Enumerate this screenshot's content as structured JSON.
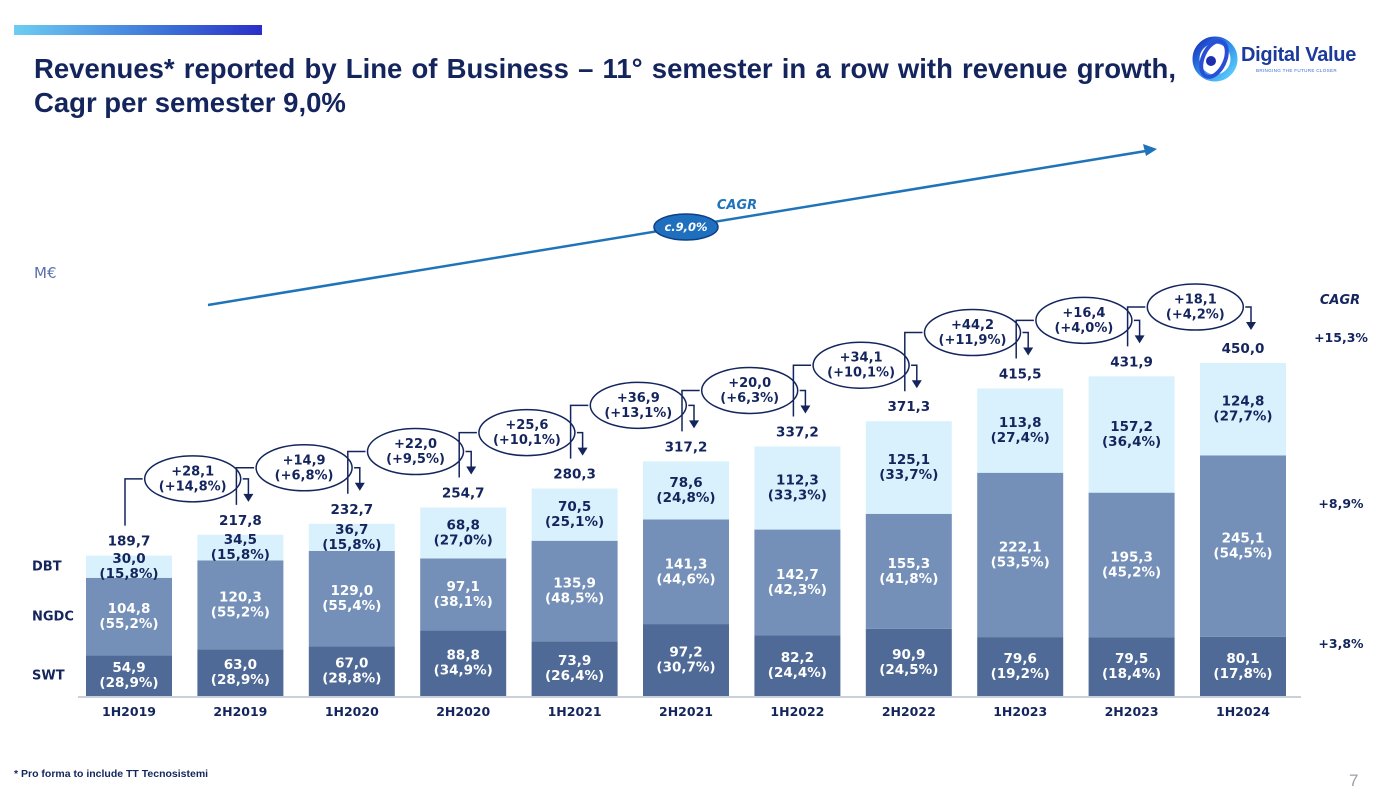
{
  "header": {
    "title": "Revenues* reported by Line of Business – 11° semester in a row with revenue growth, Cagr per semester 9,0%"
  },
  "logo": {
    "name": "Digital Value",
    "tagline": "BRINGING THE FUTURE CLOSER"
  },
  "footer": {
    "footnote": "* Pro forma to include TT Tecnosistemi",
    "page_number": "7"
  },
  "colors": {
    "swt": "#4f6a96",
    "ngdc": "#7590b8",
    "dbt": "#d8f1fc",
    "navy": "#14255e",
    "arrow": "#1f74b9",
    "bubble": "#1f6fbf"
  },
  "chart_data": {
    "type": "bar",
    "stacked": true,
    "unit_label": "M€",
    "categories": [
      "1H2019",
      "2H2019",
      "1H2020",
      "2H2020",
      "1H2021",
      "2H2021",
      "1H2022",
      "2H2022",
      "1H2023",
      "2H2023",
      "1H2024"
    ],
    "series": [
      {
        "name": "SWT",
        "values": [
          54.9,
          63.0,
          67.0,
          88.8,
          73.9,
          97.2,
          82.2,
          90.9,
          79.6,
          79.5,
          80.1
        ],
        "labels": [
          "54,9\n(28,9%)",
          "63,0\n(28,9%)",
          "67,0\n(28,8%)",
          "88,8\n(34,9%)",
          "73,9\n(26,4%)",
          "97,2\n(30,7%)",
          "82,2\n(24,4%)",
          "90,9\n(24,5%)",
          "79,6\n(19,2%)",
          "79,5\n(18,4%)",
          "80,1\n(17,8%)"
        ]
      },
      {
        "name": "NGDC",
        "values": [
          104.8,
          120.3,
          129.0,
          97.1,
          135.9,
          141.3,
          142.7,
          155.3,
          222.1,
          195.3,
          245.1
        ],
        "labels": [
          "104,8\n(55,2%)",
          "120,3\n(55,2%)",
          "129,0\n(55,4%)",
          "97,1\n(38,1%)",
          "135,9\n(48,5%)",
          "141,3\n(44,6%)",
          "142,7\n(42,3%)",
          "155,3\n(41,8%)",
          "222,1\n(53,5%)",
          "195,3\n(45,2%)",
          "245,1\n(54,5%)"
        ]
      },
      {
        "name": "DBT",
        "values": [
          30.0,
          34.5,
          36.7,
          68.8,
          70.5,
          78.6,
          112.3,
          125.1,
          113.8,
          157.2,
          124.8
        ],
        "labels": [
          "30,0\n(15,8%)",
          "34,5\n(15,8%)",
          "36,7\n(15,8%)",
          "68,8\n(27,0%)",
          "70,5\n(25,1%)",
          "78,6\n(24,8%)",
          "112,3\n(33,3%)",
          "125,1\n(33,7%)",
          "113,8\n(27,4%)",
          "157,2\n(36,4%)",
          "124,8\n(27,7%)"
        ]
      }
    ],
    "totals": [
      189.7,
      217.8,
      232.7,
      254.7,
      280.3,
      317.2,
      337.2,
      371.3,
      415.5,
      431.9,
      450.0
    ],
    "total_labels": [
      "189,7",
      "217,8",
      "232,7",
      "254,7",
      "280,3",
      "317,2",
      "337,2",
      "371,3",
      "415,5",
      "431,9",
      "450,0"
    ],
    "growth": [
      [
        "+28,1",
        "(+14,8%)"
      ],
      [
        "+14,9",
        "(+6,8%)"
      ],
      [
        "+22,0",
        "(+9,5%)"
      ],
      [
        "+25,6",
        "(+10,1%)"
      ],
      [
        "+36,9",
        "(+13,1%)"
      ],
      [
        "+20,0",
        "(+6,3%)"
      ],
      [
        "+34,1",
        "(+10,1%)"
      ],
      [
        "+44,2",
        "(+11,9%)"
      ],
      [
        "+16,4",
        "(+4,0%)"
      ],
      [
        "+18,1",
        "(+4,2%)"
      ]
    ],
    "cagr_title": "CAGR",
    "cagr_overall_label": "CAGR",
    "cagr_overall_value": "c.9,0%",
    "cagr_by_series": [
      {
        "name": "DBT",
        "value": "+15,3%"
      },
      {
        "name": "NGDC",
        "value": "+8,9%"
      },
      {
        "name": "SWT",
        "value": "+3,8%"
      }
    ],
    "ylim": [
      0,
      480
    ]
  }
}
